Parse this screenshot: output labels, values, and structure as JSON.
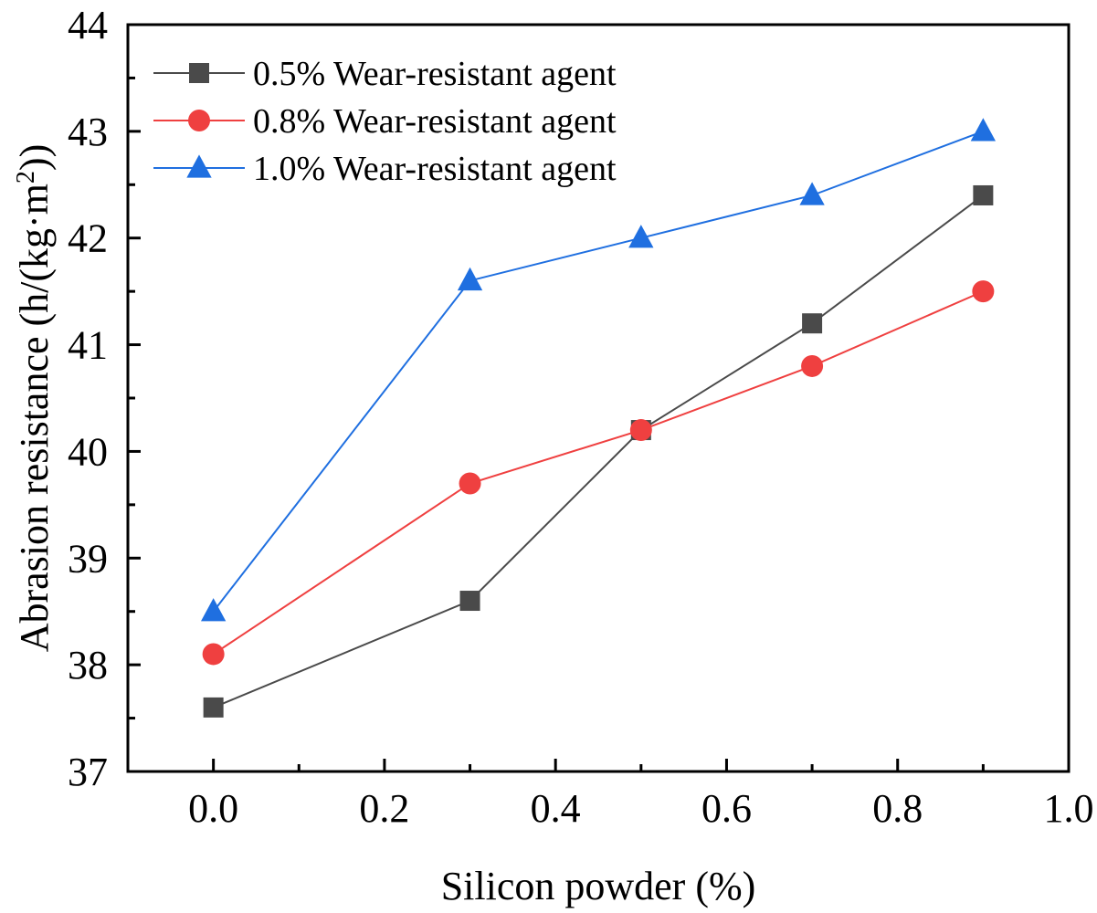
{
  "chart_data": {
    "type": "line",
    "xlabel": "Silicon powder (%)",
    "ylabel_main": "Abrasion resistance (h/(kg·m",
    "ylabel_sup": "2",
    "ylabel_tail": "))",
    "xlim": [
      -0.1,
      1.0
    ],
    "ylim": [
      37,
      44
    ],
    "xticks": [
      0.0,
      0.2,
      0.4,
      0.6,
      0.8,
      1.0
    ],
    "xtick_labels": [
      "0.0",
      "0.2",
      "0.4",
      "0.6",
      "0.8",
      "1.0"
    ],
    "yticks": [
      37,
      38,
      39,
      40,
      41,
      42,
      43,
      44
    ],
    "ytick_labels": [
      "37",
      "38",
      "39",
      "40",
      "41",
      "42",
      "43",
      "44"
    ],
    "legend_position": "top-left",
    "x": [
      0.0,
      0.3,
      0.5,
      0.7,
      0.9
    ],
    "series": [
      {
        "name": "0.5% Wear-resistant agent",
        "marker": "square",
        "color": "#4a4a4a",
        "values": [
          37.6,
          38.6,
          40.2,
          41.2,
          42.4
        ]
      },
      {
        "name": "0.8% Wear-resistant agent",
        "marker": "circle",
        "color": "#ef4040",
        "values": [
          38.1,
          39.7,
          40.2,
          40.8,
          41.5
        ]
      },
      {
        "name": "1.0% Wear-resistant agent",
        "marker": "triangle",
        "color": "#1f6fe0",
        "values": [
          38.5,
          41.6,
          42.0,
          42.4,
          43.0
        ]
      }
    ]
  }
}
